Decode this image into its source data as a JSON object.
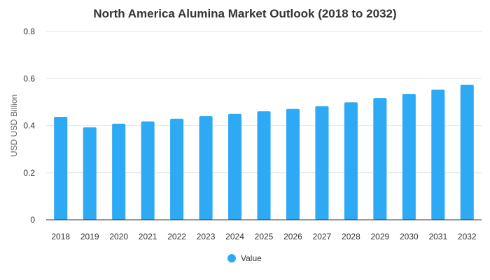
{
  "chart_data": {
    "type": "bar",
    "title": "North America Alumina Market Outlook (2018 to 2032)",
    "xlabel": "",
    "ylabel": "USD USD Billion",
    "categories": [
      "2018",
      "2019",
      "2020",
      "2021",
      "2022",
      "2023",
      "2024",
      "2025",
      "2026",
      "2027",
      "2028",
      "2029",
      "2030",
      "2031",
      "2032"
    ],
    "series": [
      {
        "name": "Value",
        "color": "#2eaaf5",
        "values": [
          0.437,
          0.393,
          0.408,
          0.418,
          0.429,
          0.44,
          0.45,
          0.461,
          0.471,
          0.483,
          0.499,
          0.517,
          0.535,
          0.553,
          0.574
        ]
      }
    ],
    "ylim": [
      0,
      0.8
    ],
    "yticks": [
      "0",
      "0.2",
      "0.4",
      "0.6",
      "0.8"
    ],
    "ytick_values": [
      0,
      0.2,
      0.4,
      0.6,
      0.8
    ],
    "grid": true,
    "legend_position": "bottom"
  }
}
